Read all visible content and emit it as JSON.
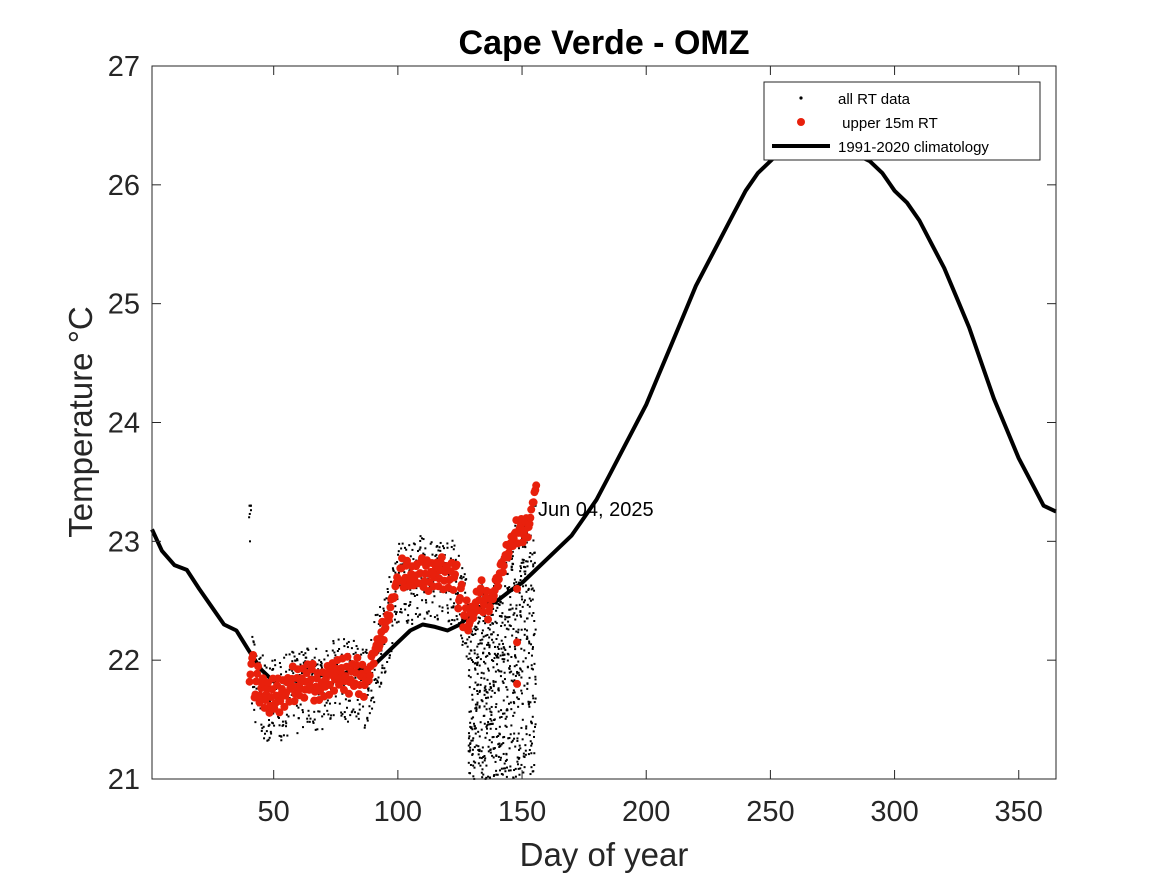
{
  "chart_data": {
    "type": "line",
    "title": "Cape Verde - OMZ",
    "xlabel": "Day of year",
    "ylabel": "Temperature °C",
    "xlim": [
      1,
      365
    ],
    "ylim": [
      21,
      27
    ],
    "xticks": [
      50,
      100,
      150,
      200,
      250,
      300,
      350
    ],
    "yticks": [
      21,
      22,
      23,
      24,
      25,
      26,
      27
    ],
    "grid": false,
    "legend_position": "top-right",
    "annotation": {
      "text": "Jun 04, 2025",
      "x": 155,
      "y": 23.25
    },
    "colors": {
      "climatology": "#000000",
      "upper15m": "#e8200c",
      "rt": "#000000",
      "axes": "#262626"
    },
    "series": [
      {
        "name": "all RT data",
        "kind": "scatter-dots",
        "x_range": [
          40,
          155
        ],
        "y_range": [
          21.0,
          23.3
        ]
      },
      {
        "name": " upper 15m RT",
        "kind": "scatter-markers",
        "x": [
          41,
          43,
          45,
          47,
          49,
          51,
          53,
          55,
          57,
          59,
          61,
          63,
          65,
          67,
          69,
          71,
          73,
          75,
          77,
          79,
          81,
          83,
          85,
          87,
          89,
          91,
          93,
          95,
          97,
          99,
          101,
          103,
          105,
          107,
          109,
          111,
          113,
          115,
          117,
          119,
          121,
          123,
          125,
          127,
          129,
          131,
          133,
          135,
          137,
          139,
          141,
          143,
          145,
          147,
          149,
          151,
          153,
          155
        ],
        "y": [
          21.95,
          21.8,
          21.75,
          21.72,
          21.7,
          21.72,
          21.7,
          21.75,
          21.8,
          21.78,
          21.8,
          21.82,
          21.85,
          21.8,
          21.78,
          21.82,
          21.85,
          21.88,
          21.9,
          21.88,
          21.85,
          21.88,
          21.85,
          21.82,
          21.95,
          22.1,
          22.2,
          22.3,
          22.45,
          22.6,
          22.75,
          22.72,
          22.7,
          22.72,
          22.75,
          22.72,
          22.7,
          22.72,
          22.75,
          22.72,
          22.7,
          22.72,
          22.55,
          22.4,
          22.35,
          22.45,
          22.55,
          22.5,
          22.45,
          22.6,
          22.75,
          22.85,
          22.95,
          23.05,
          23.1,
          23.1,
          23.15,
          23.4
        ]
      },
      {
        "name": "1991-2020 climatology",
        "kind": "line",
        "x": [
          1,
          5,
          10,
          15,
          20,
          25,
          30,
          35,
          40,
          45,
          50,
          55,
          60,
          65,
          70,
          75,
          80,
          85,
          90,
          95,
          100,
          105,
          110,
          115,
          120,
          125,
          130,
          135,
          140,
          145,
          150,
          155,
          160,
          165,
          170,
          175,
          180,
          185,
          190,
          195,
          200,
          205,
          210,
          215,
          220,
          225,
          230,
          235,
          240,
          245,
          250,
          255,
          260,
          265,
          270,
          275,
          280,
          285,
          290,
          295,
          300,
          305,
          310,
          315,
          320,
          325,
          330,
          335,
          340,
          345,
          350,
          355,
          360,
          365
        ],
        "y": [
          23.1,
          22.92,
          22.8,
          22.76,
          22.6,
          22.45,
          22.3,
          22.25,
          22.08,
          21.92,
          21.82,
          21.85,
          21.82,
          21.84,
          21.88,
          21.86,
          21.9,
          21.92,
          21.95,
          22.05,
          22.15,
          22.25,
          22.3,
          22.28,
          22.25,
          22.3,
          22.4,
          22.45,
          22.5,
          22.58,
          22.65,
          22.75,
          22.85,
          22.95,
          23.05,
          23.2,
          23.35,
          23.55,
          23.75,
          23.95,
          24.15,
          24.4,
          24.65,
          24.9,
          25.15,
          25.35,
          25.55,
          25.75,
          25.95,
          26.1,
          26.2,
          26.3,
          26.35,
          26.4,
          26.4,
          26.38,
          26.3,
          26.25,
          26.2,
          26.1,
          25.95,
          25.85,
          25.7,
          25.5,
          25.3,
          25.05,
          24.8,
          24.5,
          24.2,
          23.95,
          23.7,
          23.5,
          23.3,
          23.25
        ]
      }
    ]
  }
}
